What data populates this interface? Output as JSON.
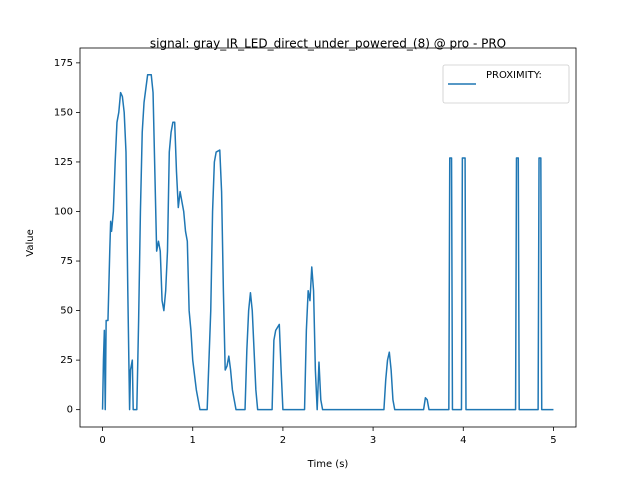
{
  "chart_data": {
    "type": "line",
    "title": "signal: gray_IR_LED_direct_under_powered_(8) @ pro - PRO",
    "x_label": "Time (s)",
    "y_label": "Value",
    "xlim": [
      -0.25,
      5.25
    ],
    "ylim": [
      -8.75,
      182.5
    ],
    "xticks": [
      0,
      1,
      2,
      3,
      4,
      5
    ],
    "yticks": [
      0,
      25,
      50,
      75,
      100,
      125,
      150,
      175
    ],
    "grid": false,
    "legend": "upper right",
    "series": [
      {
        "name": "PROXIMITY:",
        "color": "#1f77b4",
        "x": [
          0,
          0.01,
          0.02,
          0.03,
          0.04,
          0.06,
          0.08,
          0.09,
          0.1,
          0.11,
          0.12,
          0.14,
          0.16,
          0.18,
          0.2,
          0.22,
          0.24,
          0.26,
          0.28,
          0.3,
          0.31,
          0.33,
          0.34,
          0.38,
          0.4,
          0.42,
          0.44,
          0.46,
          0.48,
          0.5,
          0.54,
          0.56,
          0.58,
          0.6,
          0.62,
          0.64,
          0.66,
          0.68,
          0.7,
          0.72,
          0.74,
          0.76,
          0.78,
          0.8,
          0.82,
          0.84,
          0.86,
          0.88,
          0.9,
          0.92,
          0.94,
          0.96,
          0.98,
          1.0,
          1.04,
          1.08,
          1.16,
          1.2,
          1.22,
          1.24,
          1.26,
          1.3,
          1.32,
          1.34,
          1.36,
          1.38,
          1.4,
          1.42,
          1.44,
          1.48,
          1.58,
          1.6,
          1.62,
          1.64,
          1.66,
          1.68,
          1.7,
          1.72,
          1.88,
          1.9,
          1.92,
          1.96,
          1.98,
          2.0,
          2.24,
          2.26,
          2.28,
          2.3,
          2.32,
          2.34,
          2.36,
          2.38,
          2.4,
          2.42,
          2.44,
          3.12,
          3.14,
          3.16,
          3.18,
          3.2,
          3.22,
          3.24,
          3.56,
          3.58,
          3.6,
          3.62,
          3.84,
          3.85,
          3.87,
          3.88,
          3.98,
          3.99,
          4.02,
          4.03,
          4.58,
          4.59,
          4.61,
          4.62,
          4.83,
          4.84,
          4.86,
          4.87,
          5.0
        ],
        "values": [
          0,
          25,
          40,
          0,
          45,
          45,
          80,
          95,
          90,
          95,
          100,
          125,
          145,
          150,
          160,
          158,
          150,
          130,
          60,
          0,
          20,
          25,
          0,
          0,
          45,
          100,
          140,
          155,
          162,
          169,
          169,
          160,
          120,
          80,
          85,
          80,
          55,
          50,
          60,
          80,
          130,
          140,
          145,
          145,
          120,
          102,
          110,
          105,
          100,
          90,
          85,
          50,
          40,
          25,
          10,
          0,
          0,
          50,
          100,
          125,
          130,
          131,
          110,
          60,
          20,
          22,
          27,
          20,
          10,
          0,
          0,
          30,
          50,
          59,
          50,
          30,
          10,
          0,
          0,
          35,
          40,
          43,
          20,
          0,
          0,
          40,
          60,
          55,
          72,
          60,
          20,
          0,
          24,
          5,
          0,
          0,
          15,
          25,
          29,
          20,
          5,
          0,
          0,
          6,
          5,
          0,
          0,
          127,
          127,
          0,
          0,
          127,
          127,
          0,
          0,
          127,
          127,
          0,
          0,
          127,
          127,
          0,
          0
        ]
      }
    ]
  }
}
